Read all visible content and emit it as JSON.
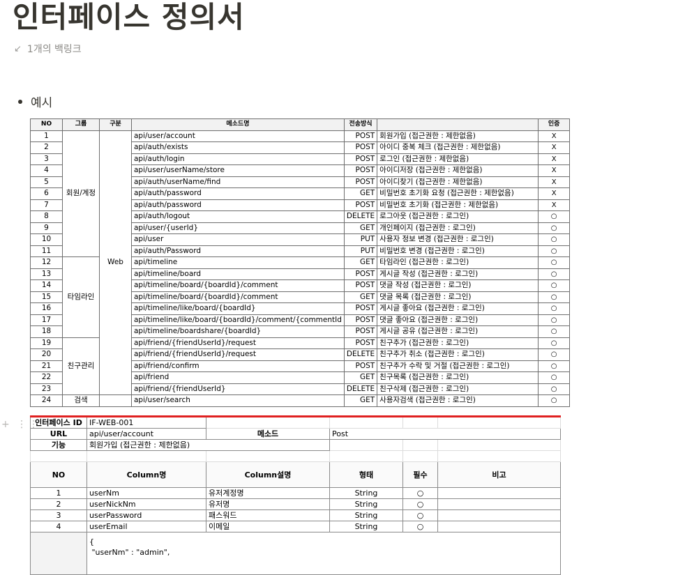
{
  "page": {
    "title": "인터페이스 정의서",
    "backlinks": "1개의 백링크",
    "bullet": "예시"
  },
  "api_table": {
    "headers": [
      "NO",
      "그룹",
      "구분",
      "메소드명",
      "전송방식",
      "",
      "인증"
    ],
    "groups": [
      "회원/계정",
      "타임라인",
      "친구관리",
      "검색"
    ],
    "category": "Web",
    "rows": [
      {
        "no": "1",
        "path": "api/user/account",
        "method": "POST",
        "desc": "회원가입 (접근권한 : 제한없음)",
        "auth": "X"
      },
      {
        "no": "2",
        "path": "api/auth/exists",
        "method": "POST",
        "desc": "아이디 중복 체크 (접근권한 : 제한없음)",
        "auth": "X"
      },
      {
        "no": "3",
        "path": "api/auth/login",
        "method": "POST",
        "desc": "로그인 (접근권한 : 제한없음)",
        "auth": "X"
      },
      {
        "no": "4",
        "path": "api/user/userName/store",
        "method": "POST",
        "desc": "아이디저장 (접근권한 : 제한없음)",
        "auth": "X"
      },
      {
        "no": "5",
        "path": "api/auth/userName/find",
        "method": "POST",
        "desc": "아이디찾기 (접근권한 : 제한없음)",
        "auth": "X"
      },
      {
        "no": "6",
        "path": "api/auth/password",
        "method": "GET",
        "desc": "비밀번호 초기화 요청 (접근권한 : 제한없음)",
        "auth": "X"
      },
      {
        "no": "7",
        "path": "api/auth/password",
        "method": "POST",
        "desc": "비밀번호 초기화 (접근권한 : 제한없음)",
        "auth": "X"
      },
      {
        "no": "8",
        "path": "api/auth/logout",
        "method": "DELETE",
        "desc": "로그아웃 (접근권한 : 로그인)",
        "auth": "○"
      },
      {
        "no": "9",
        "path": "api/user/{userId}",
        "method": "GET",
        "desc": "개인페이지 (접근권한 : 로그인)",
        "auth": "○"
      },
      {
        "no": "10",
        "path": "api/user",
        "method": "PUT",
        "desc": "사용자 정보 변경 (접근권한 : 로그인)",
        "auth": "○"
      },
      {
        "no": "11",
        "path": "api/auth/Password",
        "method": "PUT",
        "desc": "비밀번호 변경 (접근권한 : 로그인)",
        "auth": "○"
      },
      {
        "no": "12",
        "path": "api/timeline",
        "method": "GET",
        "desc": "타임라인 (접근권한 : 로그인)",
        "auth": "○"
      },
      {
        "no": "13",
        "path": "api/timeline/board",
        "method": "POST",
        "desc": "게시글 작성 (접근권한 : 로그인)",
        "auth": "○"
      },
      {
        "no": "14",
        "path": "api/timeline/board/{boardId}/comment",
        "method": "POST",
        "desc": "댓글 작성 (접근권한 : 로그인)",
        "auth": "○"
      },
      {
        "no": "15",
        "path": "api/timeline/board/{boardId}/comment",
        "method": "GET",
        "desc": "댓글 목록 (접근권한 : 로그인)",
        "auth": "○"
      },
      {
        "no": "16",
        "path": "api/timeline/like/board/{boardId}",
        "method": "POST",
        "desc": "게시글 좋아요 (접근권한 : 로그인)",
        "auth": "○"
      },
      {
        "no": "17",
        "path": "api/timeline/like/board/{boardId}/comment/{commentId",
        "method": "POST",
        "desc": "댓글 좋아요 (접근권한 : 로그인)",
        "auth": "○"
      },
      {
        "no": "18",
        "path": "api/timeline/boardshare/{boardId}",
        "method": "POST",
        "desc": "게시글 공유 (접근권한 : 로그인)",
        "auth": "○"
      },
      {
        "no": "19",
        "path": "api/friend/{friendUserId}/request",
        "method": "POST",
        "desc": "친구추가 (접근권한 : 로그인)",
        "auth": "○"
      },
      {
        "no": "20",
        "path": "api/friend/{friendUserId}/request",
        "method": "DELETE",
        "desc": "친구추가 취소 (접근권한 : 로그인)",
        "auth": "○"
      },
      {
        "no": "21",
        "path": "api/friend/confirm",
        "method": "POST",
        "desc": "친구추가 수락 및 거절 (접근권한 : 로그인)",
        "auth": "○"
      },
      {
        "no": "22",
        "path": "api/friend",
        "method": "GET",
        "desc": "친구목록 (접근권한 : 로그인)",
        "auth": "○"
      },
      {
        "no": "23",
        "path": "api/friend/{friendUserId}",
        "method": "DELETE",
        "desc": "친구삭제 (접근권한 : 로그인)",
        "auth": "○"
      },
      {
        "no": "24",
        "path": "api/user/search",
        "method": "GET",
        "desc": "사용자검색 (접근권한 : 로그인)",
        "auth": "○"
      }
    ]
  },
  "interface_spec": {
    "id_label": "인터페이스 ID",
    "id_value": "IF-WEB-001",
    "url_label": "URL",
    "url_value": "api/user/account",
    "method_label": "메소드",
    "method_value": "Post",
    "func_label": "기능",
    "func_value": "회원가입 (접근권한 : 제한없음)",
    "columns": [
      "NO",
      "Column명",
      "Column설명",
      "형태",
      "필수",
      "비고"
    ],
    "fields": [
      {
        "no": "1",
        "name": "userNm",
        "desc": "유저계정명",
        "type": "String",
        "req": "○"
      },
      {
        "no": "2",
        "name": "userNickNm",
        "desc": "유저명",
        "type": "String",
        "req": "○"
      },
      {
        "no": "3",
        "name": "userPassword",
        "desc": "패스워드",
        "type": "String",
        "req": "○"
      },
      {
        "no": "4",
        "name": "userEmail",
        "desc": "이메일",
        "type": "String",
        "req": "○"
      }
    ],
    "json_line1": "{",
    "json_line2": " \"userNm\" : \"admin\","
  }
}
